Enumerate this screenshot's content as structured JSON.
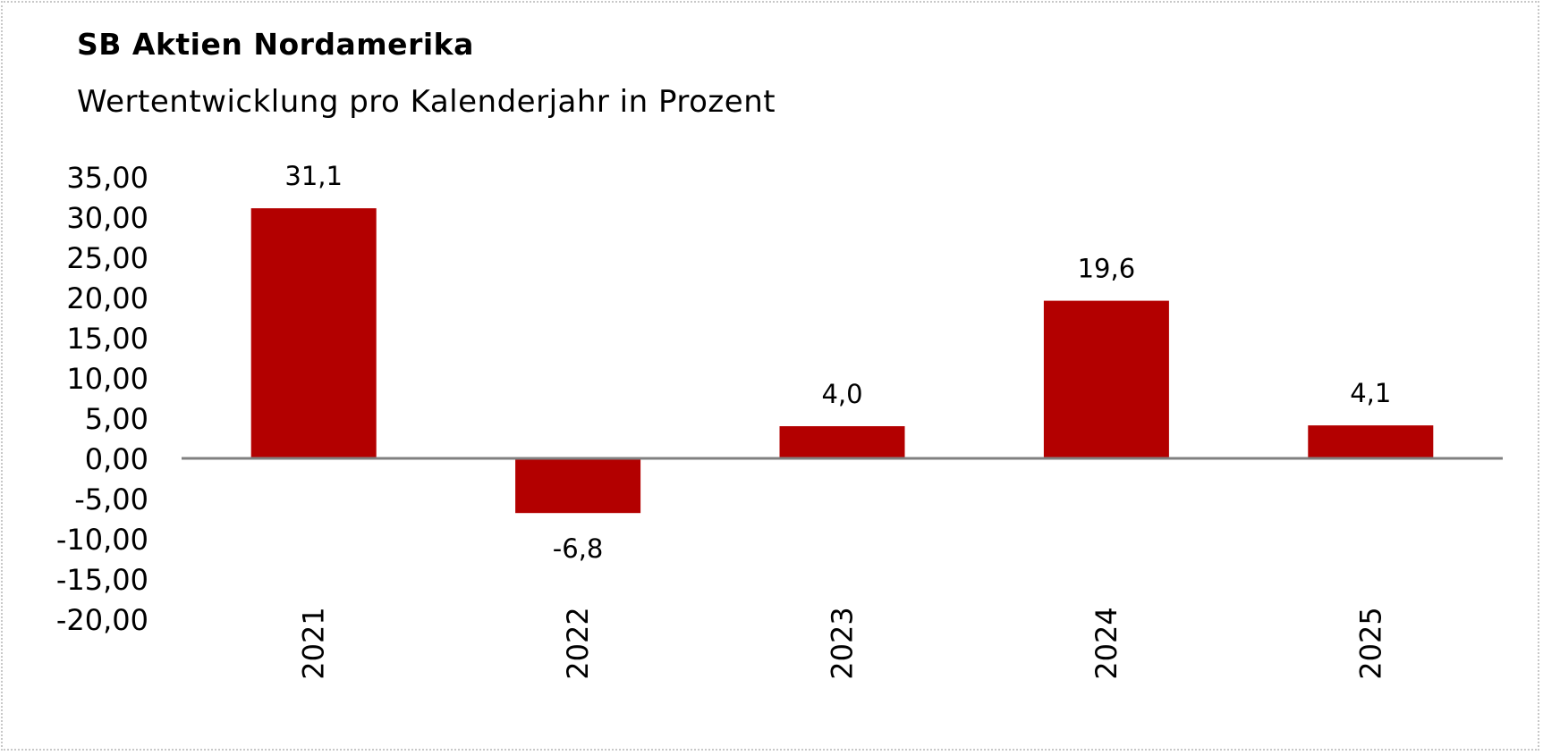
{
  "header": {
    "title": "SB Aktien Nordamerika",
    "subtitle": "Wertentwicklung pro Kalenderjahr in Prozent"
  },
  "chart_data": {
    "type": "bar",
    "title": "SB Aktien Nordamerika",
    "subtitle": "Wertentwicklung pro Kalenderjahr in Prozent",
    "categories": [
      "2021",
      "2022",
      "2023",
      "2024",
      "2025"
    ],
    "values": [
      31.1,
      -6.8,
      4.0,
      19.6,
      4.1
    ],
    "data_labels": [
      "31,1",
      "-6,8",
      "4,0",
      "19,6",
      "4,1"
    ],
    "ylim": [
      -20,
      35
    ],
    "ytick_step": 5,
    "ytick_labels": [
      "35,00",
      "30,00",
      "25,00",
      "20,00",
      "15,00",
      "10,00",
      "5,00",
      "0,00",
      "-5,00",
      "-10,00",
      "-15,00",
      "-20,00"
    ],
    "xlabel": "",
    "ylabel": "",
    "bar_color": "#b30000",
    "axis_color": "#808080",
    "grid": false,
    "legend": "none",
    "xtick_rotation": "vertical"
  }
}
